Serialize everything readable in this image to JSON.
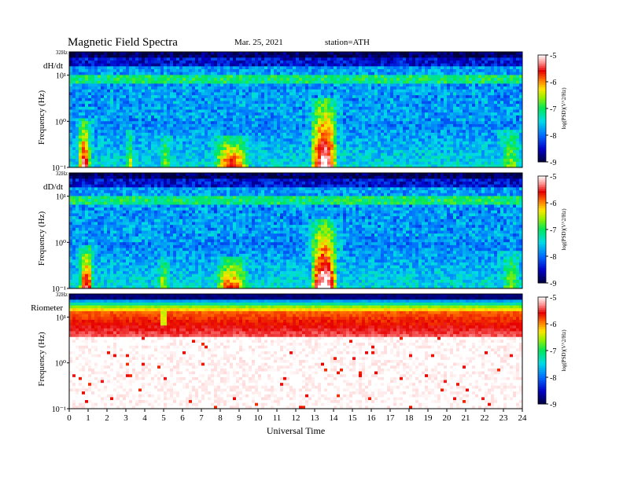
{
  "header": {
    "title": "Magnetic  Field  Spectra",
    "date": "Mar. 25, 2021",
    "station": "station=ATH"
  },
  "chart_data": {
    "type": "heatmap",
    "xlabel": "Universal Time",
    "x_ticks": [
      "0",
      "1",
      "2",
      "3",
      "4",
      "5",
      "6",
      "7",
      "8",
      "9",
      "10",
      "11",
      "12",
      "13",
      "14",
      "15",
      "16",
      "17",
      "18",
      "19",
      "20",
      "21",
      "22",
      "23",
      "24"
    ],
    "xlim": [
      0,
      24
    ],
    "ylim_log10": [
      -1,
      1.505
    ],
    "panels": [
      {
        "name": "dH/dt",
        "ylabel": "Frequency  (Hz)",
        "y_top_label": "32Hz",
        "y_ticks": [
          "10⁻¹",
          "10⁰",
          "10¹"
        ],
        "colorbar_label": "log(PSD)(V^2/Hz)",
        "colorbar_ticks": [
          "-5",
          "-6",
          "-7",
          "-8",
          "-9"
        ],
        "colorbar_range": [
          -9,
          -5
        ],
        "bursts": [
          {
            "t": 0.8,
            "w": 0.35,
            "f_top": -0.1,
            "level": 0.8
          },
          {
            "t": 3.2,
            "w": 0.15,
            "f_top": -0.3,
            "level": 0.45
          },
          {
            "t": 5.1,
            "w": 0.35,
            "f_top": -0.4,
            "level": 0.35
          },
          {
            "t": 8.6,
            "w": 1.0,
            "f_top": -0.4,
            "level": 0.7
          },
          {
            "t": 13.5,
            "w": 0.75,
            "f_top": 0.3,
            "level": 0.95
          },
          {
            "t": 23.4,
            "w": 0.5,
            "f_top": -0.3,
            "level": 0.35
          }
        ]
      },
      {
        "name": "dD/dt",
        "ylabel": "Frequency  (Hz)",
        "y_top_label": "32Hz",
        "y_ticks": [
          "10⁻¹",
          "10⁰",
          "10¹"
        ],
        "colorbar_label": "log(PSD)(V^2/Hz)",
        "colorbar_ticks": [
          "-5",
          "-6",
          "-7",
          "-8",
          "-9"
        ],
        "colorbar_range": [
          -9,
          -5
        ],
        "bursts": [
          {
            "t": 0.9,
            "w": 0.4,
            "f_top": -0.2,
            "level": 0.75
          },
          {
            "t": 5.0,
            "w": 0.3,
            "f_top": -0.4,
            "level": 0.4
          },
          {
            "t": 8.6,
            "w": 0.9,
            "f_top": -0.4,
            "level": 0.65
          },
          {
            "t": 13.5,
            "w": 0.75,
            "f_top": 0.3,
            "level": 0.95
          },
          {
            "t": 23.4,
            "w": 0.5,
            "f_top": -0.3,
            "level": 0.35
          }
        ]
      },
      {
        "name": "Riometer",
        "ylabel": "Frequency  (Hz)",
        "y_top_label": "32Hz",
        "y_ticks": [
          "10⁻¹",
          "10⁰",
          "10¹"
        ],
        "colorbar_label": "log(PSD)(V^2/Hz)",
        "colorbar_ticks": [
          "-5",
          "-6",
          "-7",
          "-8",
          "-9"
        ],
        "colorbar_range": [
          -9,
          -5
        ],
        "spike_t": 5.0
      }
    ]
  }
}
